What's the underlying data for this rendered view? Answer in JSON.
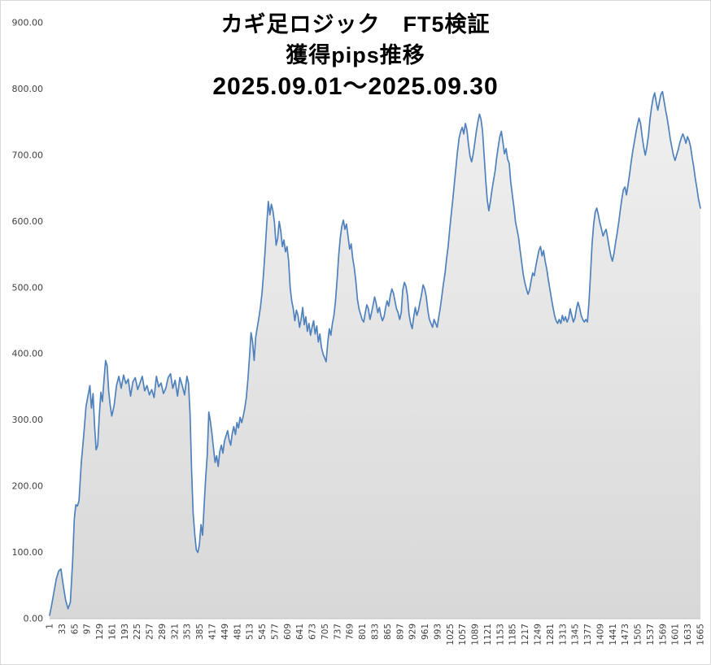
{
  "title": {
    "line1": "カギ足ロジック　FT5検証",
    "line2": "獲得pips推移",
    "line3": "2025.09.01～2025.09.30"
  },
  "chart_data": {
    "type": "area",
    "title": "カギ足ロジック　FT5検証 獲得pips推移 2025.09.01～2025.09.30",
    "xlabel": "",
    "ylabel": "",
    "xlim": [
      1,
      1665
    ],
    "ylim": [
      0,
      900
    ],
    "grid": false,
    "legend": "none",
    "line_color": "#4f81bd",
    "fill_top": "#f0f0f0",
    "fill_bottom": "#d8d8d8",
    "axis_text_color": "#404040",
    "x_tick_step": 32,
    "x_ticks": [
      1,
      33,
      65,
      97,
      129,
      161,
      193,
      225,
      257,
      289,
      321,
      353,
      385,
      417,
      449,
      481,
      513,
      545,
      577,
      609,
      641,
      673,
      705,
      737,
      769,
      801,
      833,
      865,
      897,
      929,
      961,
      993,
      1025,
      1057,
      1089,
      1121,
      1153,
      1185,
      1217,
      1249,
      1281,
      1313,
      1345,
      1377,
      1409,
      1441,
      1473,
      1505,
      1537,
      1569,
      1601,
      1633,
      1665
    ],
    "y_ticks": [
      {
        "value": 0,
        "label": "0.00"
      },
      {
        "value": 100,
        "label": "100.00"
      },
      {
        "value": 200,
        "label": "200.00"
      },
      {
        "value": 300,
        "label": "300.00"
      },
      {
        "value": 400,
        "label": "400.00"
      },
      {
        "value": 500,
        "label": "500.00"
      },
      {
        "value": 600,
        "label": "600.00"
      },
      {
        "value": 700,
        "label": "700.00"
      },
      {
        "value": 800,
        "label": "800.00"
      },
      {
        "value": 900,
        "label": "900.00"
      }
    ],
    "points": [
      [
        1,
        5
      ],
      [
        6,
        20
      ],
      [
        12,
        40
      ],
      [
        18,
        60
      ],
      [
        24,
        72
      ],
      [
        30,
        75
      ],
      [
        36,
        50
      ],
      [
        42,
        28
      ],
      [
        48,
        15
      ],
      [
        54,
        25
      ],
      [
        60,
        90
      ],
      [
        64,
        150
      ],
      [
        68,
        172
      ],
      [
        72,
        170
      ],
      [
        76,
        178
      ],
      [
        82,
        235
      ],
      [
        88,
        275
      ],
      [
        94,
        320
      ],
      [
        100,
        340
      ],
      [
        104,
        352
      ],
      [
        108,
        318
      ],
      [
        112,
        340
      ],
      [
        116,
        290
      ],
      [
        120,
        255
      ],
      [
        124,
        262
      ],
      [
        128,
        308
      ],
      [
        132,
        342
      ],
      [
        136,
        328
      ],
      [
        140,
        360
      ],
      [
        144,
        390
      ],
      [
        148,
        382
      ],
      [
        152,
        344
      ],
      [
        156,
        322
      ],
      [
        160,
        306
      ],
      [
        166,
        322
      ],
      [
        172,
        352
      ],
      [
        178,
        366
      ],
      [
        184,
        348
      ],
      [
        190,
        368
      ],
      [
        196,
        355
      ],
      [
        202,
        362
      ],
      [
        208,
        336
      ],
      [
        214,
        358
      ],
      [
        220,
        364
      ],
      [
        226,
        346
      ],
      [
        232,
        356
      ],
      [
        238,
        366
      ],
      [
        244,
        344
      ],
      [
        250,
        352
      ],
      [
        256,
        338
      ],
      [
        262,
        346
      ],
      [
        268,
        334
      ],
      [
        274,
        366
      ],
      [
        280,
        350
      ],
      [
        286,
        356
      ],
      [
        292,
        340
      ],
      [
        298,
        348
      ],
      [
        304,
        364
      ],
      [
        310,
        370
      ],
      [
        316,
        348
      ],
      [
        322,
        360
      ],
      [
        328,
        336
      ],
      [
        334,
        364
      ],
      [
        340,
        352
      ],
      [
        346,
        338
      ],
      [
        352,
        366
      ],
      [
        356,
        356
      ],
      [
        360,
        310
      ],
      [
        364,
        225
      ],
      [
        368,
        160
      ],
      [
        372,
        128
      ],
      [
        376,
        104
      ],
      [
        380,
        100
      ],
      [
        384,
        112
      ],
      [
        388,
        142
      ],
      [
        392,
        126
      ],
      [
        396,
        170
      ],
      [
        400,
        212
      ],
      [
        404,
        248
      ],
      [
        408,
        312
      ],
      [
        412,
        298
      ],
      [
        416,
        280
      ],
      [
        420,
        258
      ],
      [
        424,
        236
      ],
      [
        428,
        246
      ],
      [
        432,
        230
      ],
      [
        436,
        252
      ],
      [
        440,
        262
      ],
      [
        444,
        250
      ],
      [
        448,
        268
      ],
      [
        452,
        276
      ],
      [
        456,
        284
      ],
      [
        460,
        270
      ],
      [
        464,
        262
      ],
      [
        468,
        280
      ],
      [
        472,
        290
      ],
      [
        476,
        278
      ],
      [
        480,
        296
      ],
      [
        484,
        288
      ],
      [
        488,
        304
      ],
      [
        492,
        296
      ],
      [
        496,
        306
      ],
      [
        500,
        318
      ],
      [
        504,
        334
      ],
      [
        508,
        362
      ],
      [
        512,
        396
      ],
      [
        516,
        432
      ],
      [
        520,
        418
      ],
      [
        524,
        390
      ],
      [
        528,
        426
      ],
      [
        532,
        440
      ],
      [
        536,
        454
      ],
      [
        540,
        470
      ],
      [
        544,
        492
      ],
      [
        548,
        522
      ],
      [
        552,
        556
      ],
      [
        556,
        594
      ],
      [
        560,
        630
      ],
      [
        564,
        610
      ],
      [
        568,
        626
      ],
      [
        572,
        616
      ],
      [
        576,
        598
      ],
      [
        580,
        564
      ],
      [
        584,
        574
      ],
      [
        588,
        600
      ],
      [
        592,
        586
      ],
      [
        596,
        562
      ],
      [
        600,
        572
      ],
      [
        604,
        554
      ],
      [
        608,
        562
      ],
      [
        612,
        540
      ],
      [
        616,
        500
      ],
      [
        620,
        480
      ],
      [
        624,
        468
      ],
      [
        628,
        450
      ],
      [
        632,
        466
      ],
      [
        636,
        458
      ],
      [
        640,
        440
      ],
      [
        644,
        452
      ],
      [
        648,
        470
      ],
      [
        652,
        444
      ],
      [
        656,
        456
      ],
      [
        660,
        434
      ],
      [
        664,
        446
      ],
      [
        668,
        428
      ],
      [
        672,
        440
      ],
      [
        676,
        450
      ],
      [
        680,
        430
      ],
      [
        684,
        442
      ],
      [
        688,
        418
      ],
      [
        692,
        430
      ],
      [
        696,
        410
      ],
      [
        700,
        400
      ],
      [
        704,
        394
      ],
      [
        708,
        388
      ],
      [
        712,
        416
      ],
      [
        716,
        438
      ],
      [
        720,
        428
      ],
      [
        724,
        446
      ],
      [
        728,
        458
      ],
      [
        732,
        480
      ],
      [
        736,
        512
      ],
      [
        740,
        548
      ],
      [
        744,
        574
      ],
      [
        748,
        592
      ],
      [
        752,
        602
      ],
      [
        756,
        588
      ],
      [
        760,
        596
      ],
      [
        764,
        578
      ],
      [
        768,
        558
      ],
      [
        772,
        566
      ],
      [
        776,
        544
      ],
      [
        780,
        530
      ],
      [
        784,
        510
      ],
      [
        788,
        482
      ],
      [
        792,
        468
      ],
      [
        796,
        460
      ],
      [
        800,
        452
      ],
      [
        804,
        448
      ],
      [
        808,
        462
      ],
      [
        812,
        474
      ],
      [
        816,
        468
      ],
      [
        820,
        452
      ],
      [
        824,
        462
      ],
      [
        828,
        474
      ],
      [
        832,
        486
      ],
      [
        836,
        476
      ],
      [
        840,
        462
      ],
      [
        844,
        470
      ],
      [
        848,
        458
      ],
      [
        852,
        450
      ],
      [
        856,
        456
      ],
      [
        860,
        470
      ],
      [
        864,
        480
      ],
      [
        868,
        472
      ],
      [
        872,
        488
      ],
      [
        876,
        498
      ],
      [
        880,
        492
      ],
      [
        884,
        480
      ],
      [
        888,
        468
      ],
      [
        892,
        462
      ],
      [
        896,
        452
      ],
      [
        900,
        462
      ],
      [
        904,
        496
      ],
      [
        908,
        508
      ],
      [
        912,
        502
      ],
      [
        916,
        488
      ],
      [
        920,
        460
      ],
      [
        924,
        446
      ],
      [
        928,
        438
      ],
      [
        932,
        456
      ],
      [
        936,
        470
      ],
      [
        940,
        458
      ],
      [
        944,
        466
      ],
      [
        948,
        478
      ],
      [
        952,
        490
      ],
      [
        956,
        504
      ],
      [
        960,
        498
      ],
      [
        964,
        486
      ],
      [
        968,
        466
      ],
      [
        972,
        452
      ],
      [
        976,
        446
      ],
      [
        980,
        440
      ],
      [
        984,
        452
      ],
      [
        988,
        446
      ],
      [
        992,
        440
      ],
      [
        996,
        456
      ],
      [
        1000,
        470
      ],
      [
        1004,
        488
      ],
      [
        1008,
        506
      ],
      [
        1012,
        522
      ],
      [
        1016,
        544
      ],
      [
        1020,
        562
      ],
      [
        1024,
        588
      ],
      [
        1028,
        612
      ],
      [
        1032,
        634
      ],
      [
        1036,
        658
      ],
      [
        1040,
        682
      ],
      [
        1044,
        706
      ],
      [
        1048,
        726
      ],
      [
        1052,
        736
      ],
      [
        1056,
        742
      ],
      [
        1060,
        732
      ],
      [
        1064,
        748
      ],
      [
        1068,
        738
      ],
      [
        1072,
        716
      ],
      [
        1076,
        698
      ],
      [
        1080,
        690
      ],
      [
        1084,
        702
      ],
      [
        1088,
        718
      ],
      [
        1092,
        736
      ],
      [
        1096,
        750
      ],
      [
        1100,
        762
      ],
      [
        1104,
        754
      ],
      [
        1108,
        736
      ],
      [
        1112,
        700
      ],
      [
        1116,
        662
      ],
      [
        1120,
        632
      ],
      [
        1124,
        616
      ],
      [
        1128,
        630
      ],
      [
        1132,
        648
      ],
      [
        1136,
        662
      ],
      [
        1140,
        676
      ],
      [
        1144,
        696
      ],
      [
        1148,
        712
      ],
      [
        1152,
        728
      ],
      [
        1156,
        736
      ],
      [
        1160,
        720
      ],
      [
        1164,
        702
      ],
      [
        1168,
        710
      ],
      [
        1172,
        694
      ],
      [
        1176,
        688
      ],
      [
        1180,
        660
      ],
      [
        1184,
        640
      ],
      [
        1188,
        622
      ],
      [
        1192,
        600
      ],
      [
        1196,
        588
      ],
      [
        1200,
        576
      ],
      [
        1204,
        556
      ],
      [
        1208,
        538
      ],
      [
        1212,
        520
      ],
      [
        1216,
        508
      ],
      [
        1220,
        498
      ],
      [
        1224,
        490
      ],
      [
        1228,
        496
      ],
      [
        1232,
        510
      ],
      [
        1236,
        522
      ],
      [
        1240,
        518
      ],
      [
        1244,
        532
      ],
      [
        1248,
        544
      ],
      [
        1252,
        556
      ],
      [
        1256,
        562
      ],
      [
        1260,
        548
      ],
      [
        1264,
        556
      ],
      [
        1268,
        540
      ],
      [
        1272,
        528
      ],
      [
        1276,
        512
      ],
      [
        1280,
        498
      ],
      [
        1284,
        484
      ],
      [
        1288,
        470
      ],
      [
        1292,
        458
      ],
      [
        1296,
        450
      ],
      [
        1300,
        446
      ],
      [
        1304,
        452
      ],
      [
        1308,
        446
      ],
      [
        1312,
        458
      ],
      [
        1316,
        450
      ],
      [
        1320,
        456
      ],
      [
        1324,
        448
      ],
      [
        1328,
        454
      ],
      [
        1332,
        468
      ],
      [
        1336,
        458
      ],
      [
        1340,
        448
      ],
      [
        1344,
        454
      ],
      [
        1348,
        468
      ],
      [
        1352,
        478
      ],
      [
        1356,
        470
      ],
      [
        1360,
        458
      ],
      [
        1364,
        452
      ],
      [
        1368,
        448
      ],
      [
        1372,
        452
      ],
      [
        1376,
        448
      ],
      [
        1380,
        478
      ],
      [
        1384,
        520
      ],
      [
        1388,
        566
      ],
      [
        1392,
        596
      ],
      [
        1396,
        614
      ],
      [
        1400,
        620
      ],
      [
        1404,
        610
      ],
      [
        1408,
        598
      ],
      [
        1412,
        588
      ],
      [
        1416,
        578
      ],
      [
        1420,
        584
      ],
      [
        1424,
        588
      ],
      [
        1428,
        574
      ],
      [
        1432,
        560
      ],
      [
        1436,
        548
      ],
      [
        1440,
        540
      ],
      [
        1444,
        552
      ],
      [
        1448,
        568
      ],
      [
        1452,
        582
      ],
      [
        1456,
        598
      ],
      [
        1460,
        616
      ],
      [
        1464,
        634
      ],
      [
        1468,
        648
      ],
      [
        1472,
        652
      ],
      [
        1476,
        640
      ],
      [
        1480,
        656
      ],
      [
        1484,
        672
      ],
      [
        1488,
        690
      ],
      [
        1492,
        706
      ],
      [
        1496,
        720
      ],
      [
        1500,
        734
      ],
      [
        1504,
        746
      ],
      [
        1508,
        756
      ],
      [
        1512,
        748
      ],
      [
        1516,
        728
      ],
      [
        1520,
        712
      ],
      [
        1524,
        700
      ],
      [
        1528,
        712
      ],
      [
        1532,
        730
      ],
      [
        1536,
        754
      ],
      [
        1540,
        772
      ],
      [
        1544,
        786
      ],
      [
        1548,
        794
      ],
      [
        1552,
        780
      ],
      [
        1556,
        768
      ],
      [
        1560,
        780
      ],
      [
        1564,
        792
      ],
      [
        1568,
        796
      ],
      [
        1572,
        782
      ],
      [
        1576,
        768
      ],
      [
        1580,
        756
      ],
      [
        1584,
        740
      ],
      [
        1588,
        724
      ],
      [
        1592,
        712
      ],
      [
        1596,
        700
      ],
      [
        1600,
        692
      ],
      [
        1604,
        700
      ],
      [
        1608,
        708
      ],
      [
        1612,
        718
      ],
      [
        1616,
        726
      ],
      [
        1620,
        732
      ],
      [
        1624,
        726
      ],
      [
        1628,
        718
      ],
      [
        1632,
        728
      ],
      [
        1636,
        722
      ],
      [
        1640,
        712
      ],
      [
        1644,
        696
      ],
      [
        1648,
        682
      ],
      [
        1652,
        664
      ],
      [
        1656,
        650
      ],
      [
        1660,
        634
      ],
      [
        1665,
        620
      ]
    ]
  }
}
